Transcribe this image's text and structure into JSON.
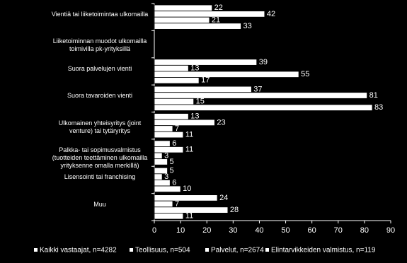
{
  "chart_data": {
    "type": "bar",
    "orientation": "horizontal",
    "categories": [
      "Vientiä tai liiketoimintaa ulkomailla",
      "Liiketoiminnan muodot ulkomailla toimivilla pk-yrityksillä",
      "Suora palvelujen vienti",
      "Suora tavaroiden vienti",
      "Ulkomainen yhteisyritys (joint venture) tai tytäryritys",
      "Palkka- tai sopimusvalmistus (tuotteiden teettäminen ulkomailla yrityksenne omalla merkillä)",
      "Lisensointi tai franchising",
      "Muu"
    ],
    "series": [
      {
        "name": "Kaikki vastaajat, n=4282",
        "color": "#ffffff",
        "values": [
          22,
          null,
          39,
          37,
          13,
          6,
          5,
          24
        ]
      },
      {
        "name": "Teollisuus, n=504",
        "color": "#ffffff",
        "values": [
          42,
          null,
          13,
          81,
          23,
          11,
          3,
          7
        ]
      },
      {
        "name": "Palvelut, n=2674",
        "color": "#ffffff",
        "values": [
          21,
          null,
          55,
          15,
          7,
          3,
          6,
          28
        ]
      },
      {
        "name": "Elintarvikkeiden valmistus, n=119",
        "color": "#ffffff",
        "values": [
          33,
          null,
          17,
          83,
          11,
          5,
          10,
          11
        ]
      }
    ],
    "xlim": [
      0,
      90
    ],
    "xticks": [
      0,
      10,
      20,
      30,
      40,
      50,
      60,
      70,
      80,
      90
    ],
    "legend": "bottom"
  }
}
